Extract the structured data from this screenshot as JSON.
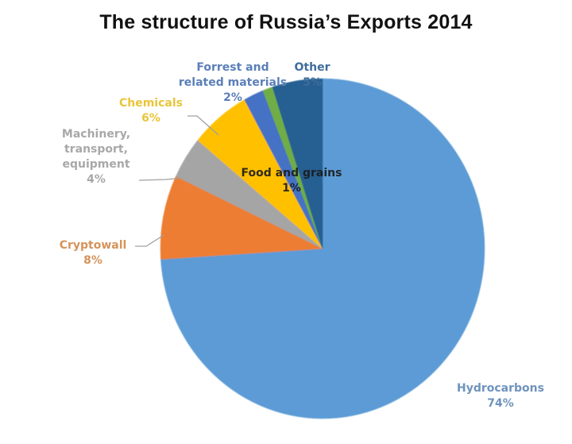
{
  "chart_data": {
    "type": "pie",
    "title": "The structure of Russia’s Exports 2014",
    "start_angle_deg": 0,
    "direction": "clockwise",
    "legend": "none (data labels with leader lines)",
    "slices": [
      {
        "label": "Hydrocarbons",
        "value": 74,
        "value_label": "74%",
        "color": "#5b9bd5",
        "label_color": "#6f93bd"
      },
      {
        "label": "Cryptowall",
        "value": 8,
        "value_label": "8%",
        "color": "#ed7d31",
        "label_color": "#d5935a"
      },
      {
        "label": "Machinery, transport, equipment",
        "value": 4,
        "value_label": "4%",
        "color": "#a5a5a5",
        "label_color": "#a8a8a8"
      },
      {
        "label": "Chemicals",
        "value": 6,
        "value_label": "6%",
        "color": "#ffc000",
        "label_color": "#e9c53a"
      },
      {
        "label": "Forrest and related materials",
        "value": 2,
        "value_label": "2%",
        "color": "#4472c4",
        "label_color": "#5b7fb8"
      },
      {
        "label": "Food and grains",
        "value": 1,
        "value_label": "1%",
        "color": "#70ad47",
        "label_color": "#1a1a1a"
      },
      {
        "label": "Other",
        "value": 5,
        "value_label": "5%",
        "color": "#255e91",
        "label_color": "#3f6d9c"
      }
    ]
  },
  "labels": {
    "hydrocarbons": {
      "name": "Hydrocarbons",
      "pct": "74%"
    },
    "cryptowall": {
      "name": "Cryptowall",
      "pct": "8%"
    },
    "machinery": {
      "line1": "Machinery,",
      "line2": "transport,",
      "line3": "equipment",
      "pct": "4%"
    },
    "chemicals": {
      "name": "Chemicals",
      "pct": "6%"
    },
    "forrest": {
      "line1": "Forrest and",
      "line2": "related materials",
      "pct": "2%"
    },
    "food": {
      "name": "Food and grains",
      "pct": "1%"
    },
    "other": {
      "name": "Other",
      "pct": "5%"
    }
  }
}
